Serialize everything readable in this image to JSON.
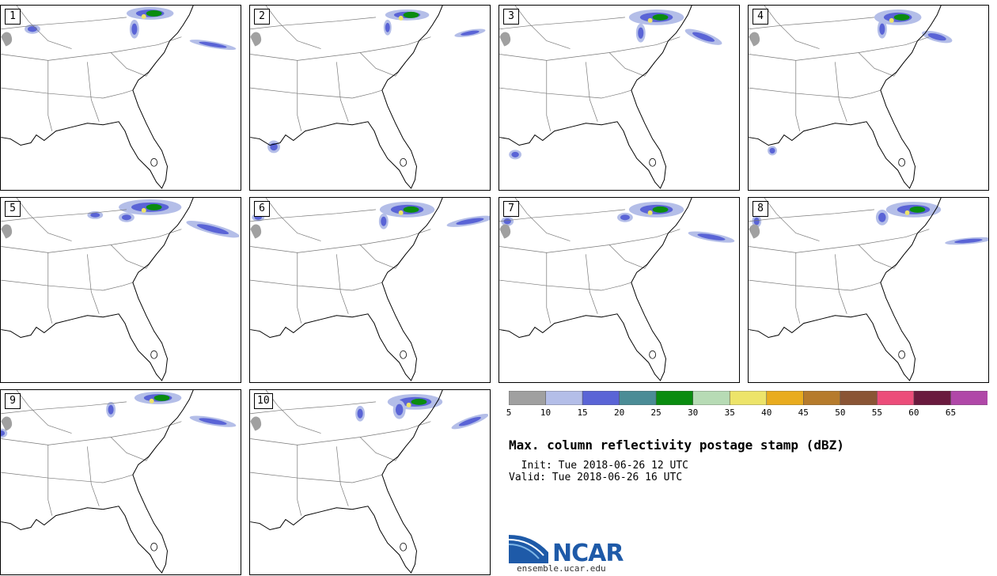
{
  "panels": [
    {
      "label": "1"
    },
    {
      "label": "2"
    },
    {
      "label": "3"
    },
    {
      "label": "4"
    },
    {
      "label": "5"
    },
    {
      "label": "6"
    },
    {
      "label": "7"
    },
    {
      "label": "8"
    },
    {
      "label": "9"
    },
    {
      "label": "10"
    }
  ],
  "colorbar": {
    "colors": [
      "#a0a0a0",
      "#b4bee8",
      "#5a64d6",
      "#4b8c96",
      "#0a8c10",
      "#b7dbb5",
      "#ede46a",
      "#e9ac1f",
      "#b67b2c",
      "#8a5535",
      "#ec4d7a",
      "#6a1a3e",
      "#b048a8"
    ],
    "ticks": [
      "5",
      "10",
      "15",
      "20",
      "25",
      "30",
      "35",
      "40",
      "45",
      "50",
      "55",
      "60",
      "65"
    ]
  },
  "title": "Max. column reflectivity postage stamp (dBZ)",
  "init": "  Init: Tue 2018-06-26 12 UTC",
  "valid": "Valid: Tue 2018-06-26 16 UTC",
  "logo": {
    "name": "NCAR",
    "url": "ensemble.ucar.edu",
    "colors": {
      "blue": "#1e5aa8",
      "light_blue": "#3b8ad0"
    }
  }
}
